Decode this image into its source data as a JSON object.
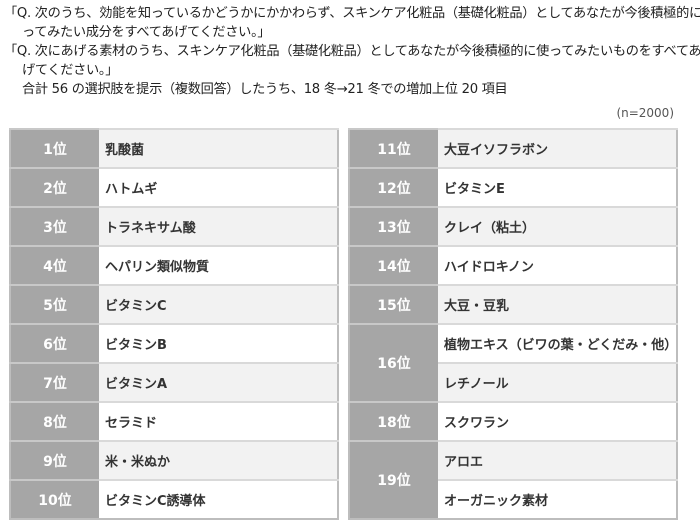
{
  "question": {
    "line1": "「Q. 次のうち、効能を知っているかどうかにかかわらず、スキンケア化粧品（基礎化粧品）としてあなたが今後積極的に使",
    "line2": "ってみたい成分をすべてあげてください。」",
    "line3": "「Q. 次にあげる素材のうち、スキンケア化粧品（基礎化粧品）としてあなたが今後積極的に使ってみたいものをすべてあ",
    "line4": "げてください。」",
    "line5": "合計 56 の選択肢を提示（複数回答）したうち、18 冬→21 冬での増加上位 20 項目"
  },
  "sample_size": "(n=2000)",
  "left_table": [
    {
      "rank": "1位",
      "items": [
        "乳酸菌"
      ]
    },
    {
      "rank": "2位",
      "items": [
        "ハトムギ"
      ]
    },
    {
      "rank": "3位",
      "items": [
        "トラネキサム酸"
      ]
    },
    {
      "rank": "4位",
      "items": [
        "ヘパリン類似物質"
      ]
    },
    {
      "rank": "5位",
      "items": [
        "ビタミンC"
      ]
    },
    {
      "rank": "6位",
      "items": [
        "ビタミンB"
      ]
    },
    {
      "rank": "7位",
      "items": [
        "ビタミンA"
      ]
    },
    {
      "rank": "8位",
      "items": [
        "セラミド"
      ]
    },
    {
      "rank": "9位",
      "items": [
        "米・米ぬか"
      ]
    },
    {
      "rank": "10位",
      "items": [
        "ビタミンC誘導体"
      ]
    }
  ],
  "right_table": [
    {
      "rank": "11位",
      "items": [
        "大豆イソフラボン"
      ]
    },
    {
      "rank": "12位",
      "items": [
        "ビタミンE"
      ]
    },
    {
      "rank": "13位",
      "items": [
        "クレイ（粘土）"
      ]
    },
    {
      "rank": "14位",
      "items": [
        "ハイドロキノン"
      ]
    },
    {
      "rank": "15位",
      "items": [
        "大豆・豆乳"
      ]
    },
    {
      "rank": "16位",
      "items": [
        "植物エキス（ビワの葉・どくだみ・他）",
        "レチノール"
      ]
    },
    {
      "rank": "18位",
      "items": [
        "スクワラン"
      ]
    },
    {
      "rank": "19位",
      "items": [
        "アロエ",
        "オーガニック素材"
      ]
    }
  ],
  "colors": {
    "rank_bg": "#a6a6a6",
    "alt_row": "#f2f2f2"
  }
}
